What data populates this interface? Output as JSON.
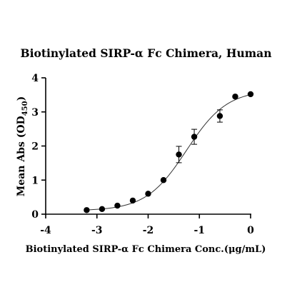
{
  "chart_data": {
    "type": "scatter",
    "title": "Biotinylated SIRP-α Fc Chimera, Human",
    "xlabel": "Biotinylated SIRP-α Fc Chimera Conc.(μg/mL)",
    "ylabel": "Mean Abs (OD",
    "ylabel_sub": "450",
    "ylabel_close": ")",
    "xlim": [
      -4,
      0
    ],
    "ylim": [
      0,
      4
    ],
    "xticks": [
      -4,
      -3,
      -2,
      -1,
      0
    ],
    "yticks": [
      0,
      1,
      2,
      3,
      4
    ],
    "grid": false,
    "series": [
      {
        "x": [
          -3.2,
          -2.9,
          -2.6,
          -2.3,
          -2.0,
          -1.7,
          -1.4,
          -1.1,
          -0.6,
          -0.3,
          0.0
        ],
        "y": [
          0.12,
          0.15,
          0.25,
          0.4,
          0.6,
          1.0,
          1.75,
          2.27,
          2.88,
          3.45,
          3.52
        ],
        "error": [
          0.03,
          0.03,
          0.03,
          0.04,
          0.05,
          0.08,
          0.24,
          0.22,
          0.18,
          0.03,
          0.03
        ]
      }
    ],
    "fit": {
      "type": "4PL",
      "bottom": 0.1,
      "top": 3.65,
      "logEC50": -1.25,
      "hill": 1.1
    }
  }
}
